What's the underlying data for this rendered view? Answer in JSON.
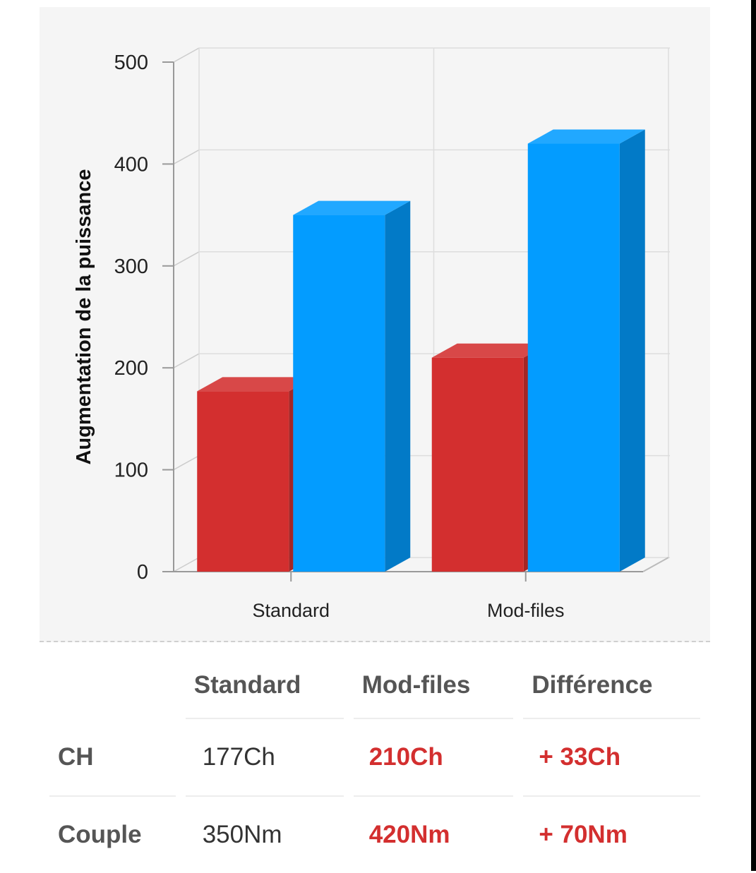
{
  "chart_data": {
    "type": "bar",
    "categories": [
      "Standard",
      "Mod-files"
    ],
    "series": [
      {
        "values": [
          177,
          210
        ],
        "color": "#d32f2f"
      },
      {
        "values": [
          350,
          420
        ],
        "color": "#039cff"
      }
    ],
    "ylabel": "Augmentation de la puissance",
    "ylim": [
      0,
      500
    ],
    "yticks": [
      "0",
      "100",
      "200",
      "300",
      "400",
      "500"
    ],
    "grid": true,
    "style": "3d"
  },
  "table": {
    "headers": [
      "Standard",
      "Mod-files",
      "Différence"
    ],
    "rows": [
      {
        "label": "CH",
        "standard": "177Ch",
        "mod": "210Ch",
        "diff": "+ 33Ch"
      },
      {
        "label": "Couple",
        "standard": "350Nm",
        "mod": "420Nm",
        "diff": "+ 70Nm"
      }
    ]
  },
  "colors": {
    "red": "#d32f2f",
    "blue": "#039cff",
    "panel": "#f5f5f5"
  }
}
